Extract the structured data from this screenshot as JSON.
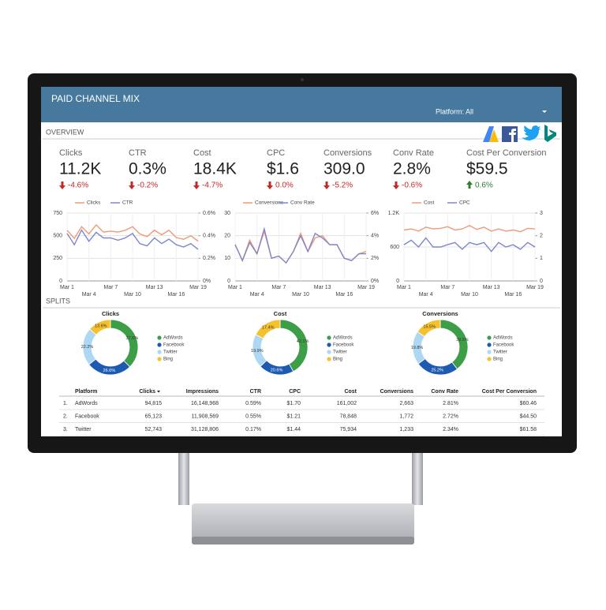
{
  "header": {
    "title": "PAID CHANNEL MIX",
    "filter": "Platform: All"
  },
  "overview": {
    "title": "OVERVIEW",
    "kpis": [
      {
        "label": "Clicks",
        "value": "11.2K",
        "change": "-4.6%",
        "trend": "down"
      },
      {
        "label": "CTR",
        "value": "0.3%",
        "change": "-0.2%",
        "trend": "down"
      },
      {
        "label": "Cost",
        "value": "18.4K",
        "change": "-4.7%",
        "trend": "down"
      },
      {
        "label": "CPC",
        "value": "$1.6",
        "change": "0.0%",
        "trend": "down"
      },
      {
        "label": "Conversions",
        "value": "309.0",
        "change": "-5.2%",
        "trend": "down"
      },
      {
        "label": "Conv Rate",
        "value": "2.8%",
        "change": "-0.6%",
        "trend": "down"
      },
      {
        "label": "Cost Per Conversion",
        "value": "$59.5",
        "change": "0.6%",
        "trend": "up"
      }
    ],
    "charts": [
      {
        "categories": [
          "Mar 1",
          null,
          null,
          "Mar 4",
          null,
          null,
          "Mar 7",
          null,
          null,
          "Mar 10",
          null,
          null,
          "Mar 13",
          null,
          null,
          "Mar 16",
          null,
          null,
          "Mar 19"
        ],
        "ylim": [
          0,
          750
        ],
        "yticks": [
          0,
          250,
          500,
          750
        ],
        "y2lim": [
          0,
          0.6
        ],
        "y2ticks": [
          {
            "value": 0,
            "label": "0%"
          },
          {
            "value": 0.2,
            "label": "0.2%"
          },
          {
            "value": 0.4,
            "label": "0.4%"
          },
          {
            "value": 0.6,
            "label": "0.6%"
          }
        ],
        "series": [
          {
            "name": "Clicks",
            "color": "#ef9a78",
            "values": [
              560,
              470,
              600,
              520,
              620,
              540,
              550,
              540,
              560,
              600,
              520,
              490,
              560,
              510,
              560,
              480,
              460,
              500,
              440
            ]
          },
          {
            "name": "CTR",
            "color": "#7f86c9",
            "axis": "y2",
            "values": [
              0.42,
              0.32,
              0.45,
              0.35,
              0.43,
              0.38,
              0.38,
              0.36,
              0.38,
              0.42,
              0.33,
              0.31,
              0.38,
              0.33,
              0.37,
              0.32,
              0.3,
              0.33,
              0.28
            ]
          }
        ]
      },
      {
        "categories": [
          "Mar 1",
          null,
          null,
          "Mar 4",
          null,
          null,
          "Mar 7",
          null,
          null,
          "Mar 10",
          null,
          null,
          "Mar 13",
          null,
          null,
          "Mar 16",
          null,
          null,
          "Mar 19"
        ],
        "ylim": [
          0,
          30
        ],
        "yticks": [
          0,
          10,
          20,
          30
        ],
        "y2lim": [
          0,
          6
        ],
        "y2ticks": [
          {
            "value": 0,
            "label": "0%"
          },
          {
            "value": 2,
            "label": "2%"
          },
          {
            "value": 4,
            "label": "4%"
          },
          {
            "value": 6,
            "label": "6%"
          }
        ],
        "series": [
          {
            "name": "Conversions",
            "color": "#ef9a78",
            "values": [
              16,
              9,
              18,
              12,
              22,
              10,
              11,
              8,
              13,
              21,
              13,
              19,
              20,
              16,
              16,
              10,
              9,
              12,
              13
            ]
          },
          {
            "name": "Conv Rate",
            "color": "#7f86c9",
            "axis": "y2",
            "values": [
              3.2,
              1.8,
              3.4,
              2.4,
              4.6,
              2.0,
              2.2,
              1.6,
              2.6,
              4.0,
              2.6,
              4.2,
              3.8,
              3.2,
              3.2,
              2.0,
              1.8,
              2.4,
              2.4
            ]
          }
        ]
      },
      {
        "categories": [
          "Mar 1",
          null,
          null,
          "Mar 4",
          null,
          null,
          "Mar 7",
          null,
          null,
          "Mar 10",
          null,
          null,
          "Mar 13",
          null,
          null,
          "Mar 16",
          null,
          null,
          "Mar 19"
        ],
        "ylim": [
          0,
          1200
        ],
        "yticks": [
          0,
          600,
          {
            "value": 1200,
            "label": "1.2K"
          }
        ],
        "y2lim": [
          0,
          3
        ],
        "y2ticks": [
          0,
          1,
          2,
          3
        ],
        "series": [
          {
            "name": "Cost",
            "color": "#ef9a78",
            "values": [
              900,
              920,
              880,
              950,
              920,
              930,
              960,
              900,
              920,
              980,
              910,
              950,
              880,
              920,
              880,
              900,
              870,
              930,
              920
            ]
          },
          {
            "name": "CPC",
            "color": "#7f86c9",
            "axis": "y2",
            "values": [
              1.6,
              1.8,
              1.5,
              1.9,
              1.5,
              1.5,
              1.6,
              1.7,
              1.4,
              1.7,
              1.6,
              1.7,
              1.3,
              1.7,
              1.5,
              1.6,
              1.4,
              1.7,
              1.5
            ]
          }
        ]
      }
    ]
  },
  "splits": {
    "title": "SPLITS",
    "platforms": [
      "AdWords",
      "Facebook",
      "Twitter",
      "Bing"
    ],
    "colors": [
      "#3d9e48",
      "#1d5bb2",
      "#aed7f4",
      "#f6c12e"
    ],
    "donuts": [
      {
        "title": "Clicks",
        "values": [
          37.6,
          26.6,
          22.2,
          13.6
        ],
        "value_labels": [
          "37.6%",
          "26.6%",
          "22.2%",
          "13.6%"
        ]
      },
      {
        "title": "Cost",
        "values": [
          42.1,
          20.6,
          19.9,
          17.4
        ],
        "value_labels": [
          "42.1%",
          "20.6%",
          "19.9%",
          "17.4%"
        ]
      },
      {
        "title": "Conversions",
        "values": [
          39.5,
          25.2,
          19.8,
          15.5
        ],
        "value_labels": [
          "39.5%",
          "25.2%",
          "19.8%",
          "15.5%"
        ]
      }
    ]
  },
  "table": {
    "columns": [
      "Platform",
      "Clicks",
      "Impressions",
      "CTR",
      "CPC",
      "Cost",
      "Conversions",
      "Conv Rate",
      "Cost Per Conversion"
    ],
    "rows": [
      [
        "1.",
        "AdWords",
        "94,815",
        "16,148,968",
        "0.59%",
        "$1.70",
        "161,002",
        "2,663",
        "2.81%",
        "$60.46"
      ],
      [
        "2.",
        "Facebook",
        "65,123",
        "11,908,569",
        "0.55%",
        "$1.21",
        "78,848",
        "1,772",
        "2.72%",
        "$44.50"
      ],
      [
        "3.",
        "Twitter",
        "52,743",
        "31,128,806",
        "0.17%",
        "$1.44",
        "75,934",
        "1,233",
        "2.34%",
        "$61.58"
      ]
    ]
  }
}
